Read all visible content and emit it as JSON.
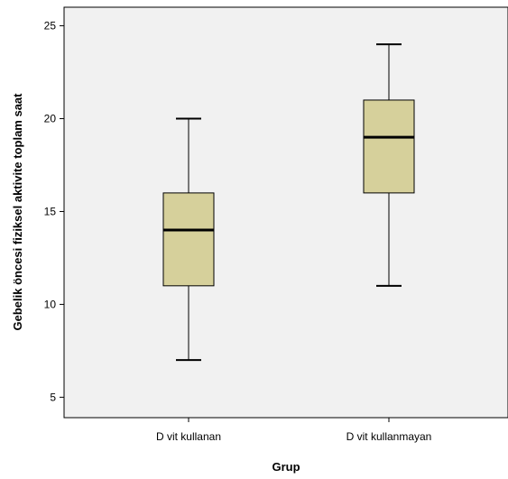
{
  "chart_data": {
    "type": "boxplot",
    "title": "",
    "xlabel": "Grup",
    "ylabel": "Gebelik öncesi fiziksel aktivite toplam saat",
    "ylim": [
      3.9,
      26
    ],
    "yticks": [
      5,
      10,
      15,
      20,
      25
    ],
    "grid": false,
    "categories": [
      "D vit kullanan",
      "D vit kullanmayan"
    ],
    "boxes": [
      {
        "category": "D vit kullanan",
        "min": 7,
        "q1": 11,
        "median": 14,
        "q3": 16,
        "max": 20
      },
      {
        "category": "D vit kullanmayan",
        "min": 11,
        "q1": 16,
        "median": 19,
        "q3": 21,
        "max": 24
      }
    ],
    "colors": {
      "box_fill": "#d6d09b",
      "stroke": "#000000",
      "plot_bg": "#f1f1f1"
    }
  }
}
